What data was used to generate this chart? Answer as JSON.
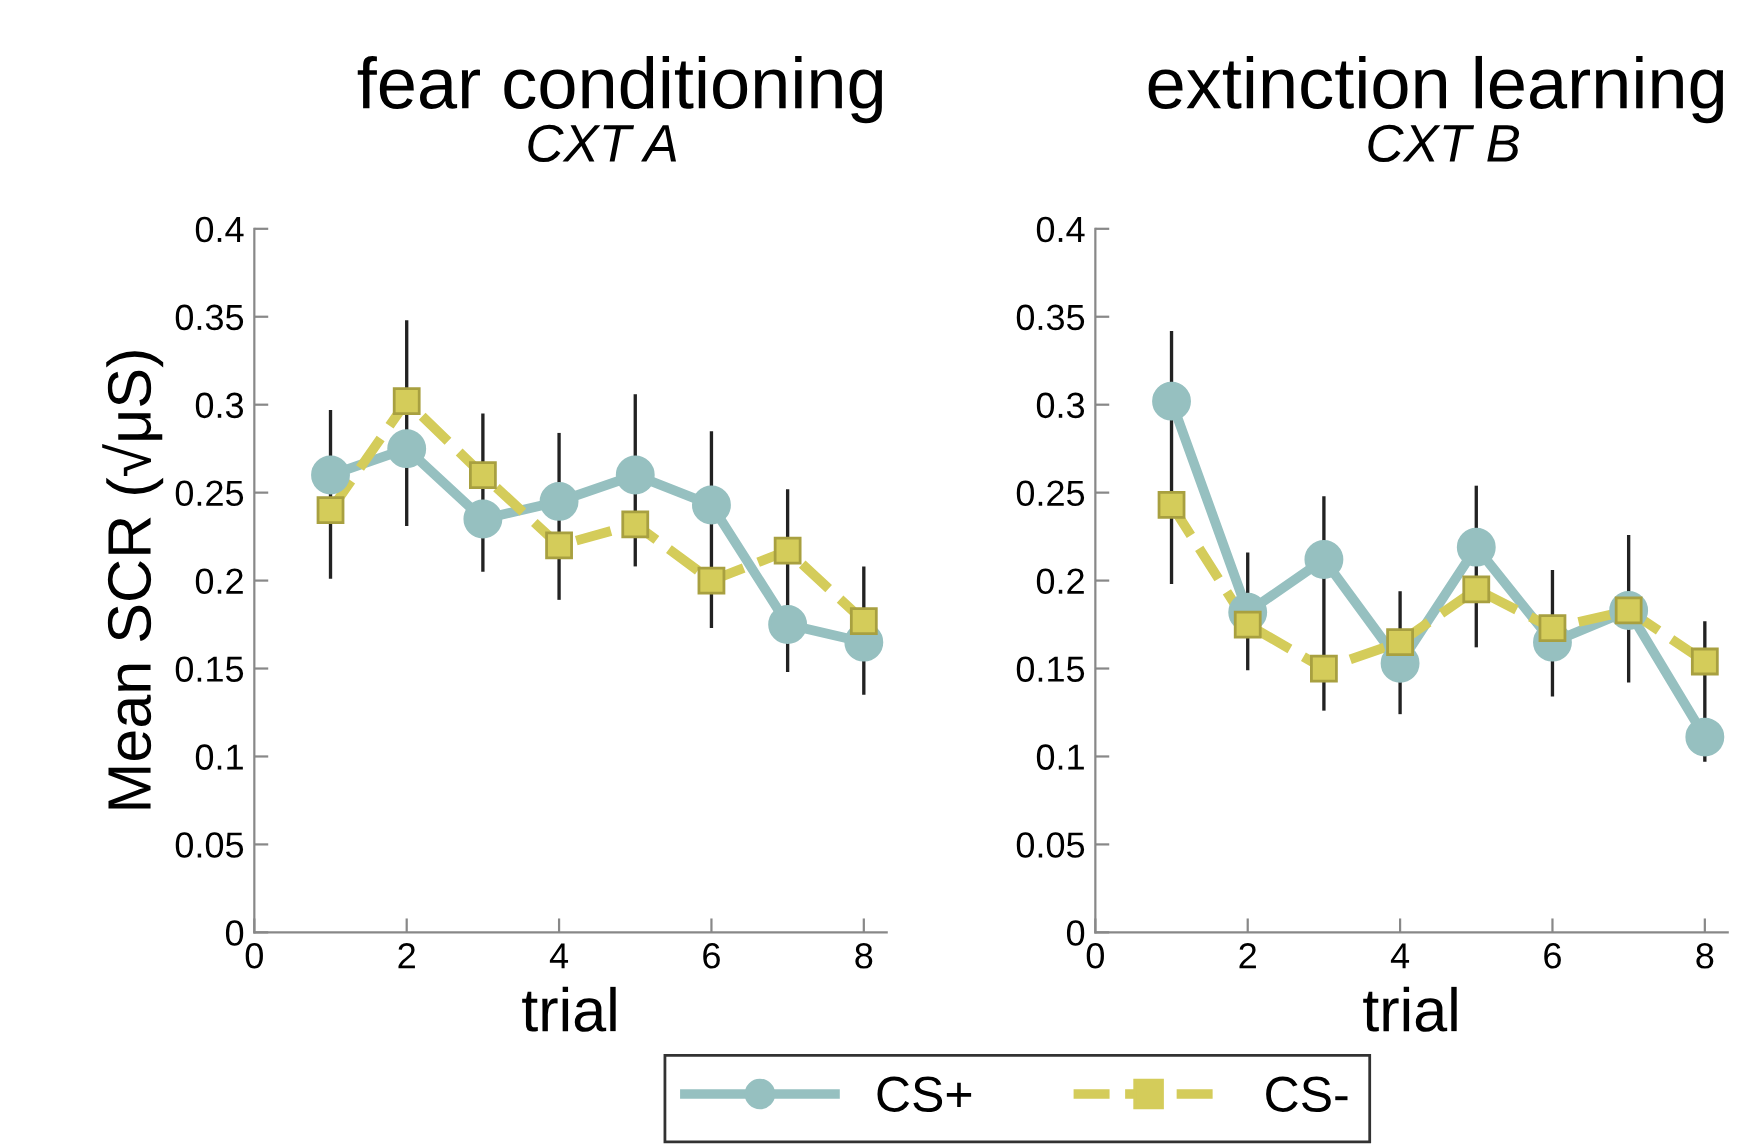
{
  "chart_data": [
    {
      "type": "line",
      "title": "fear conditioning",
      "subtitle": "CXT A",
      "xlabel": "trial",
      "ylabel": "Mean SCR (√μS)",
      "x": [
        1,
        2,
        3,
        4,
        5,
        6,
        7,
        8
      ],
      "xlim": [
        0,
        8.3
      ],
      "xticks": [
        0,
        2,
        4,
        6,
        8
      ],
      "ylim": [
        0,
        0.4
      ],
      "yticks": [
        0,
        0.05,
        0.1,
        0.15,
        0.2,
        0.25,
        0.3,
        0.35,
        0.4
      ],
      "grid": false,
      "legend": "bottom",
      "series": [
        {
          "name": "CS+",
          "color": "#96c0c0",
          "marker": "circle",
          "line_style": "solid",
          "values": [
            0.26,
            0.275,
            0.235,
            0.245,
            0.26,
            0.243,
            0.175,
            0.165
          ],
          "errors": [
            [
              0.202,
              0.296
            ],
            [
              0.232,
              0.347
            ],
            [
              0.206,
              0.294
            ],
            [
              0.19,
              0.283
            ],
            [
              0.209,
              0.305
            ],
            [
              0.174,
              0.284
            ],
            [
              0.149,
              0.251
            ],
            [
              0.136,
              0.207
            ]
          ]
        },
        {
          "name": "CS-",
          "color": "#d4cc5a",
          "marker": "square",
          "line_style": "dashed",
          "values": [
            0.24,
            0.302,
            0.26,
            0.22,
            0.232,
            0.2,
            0.217,
            0.177
          ]
        }
      ]
    },
    {
      "type": "line",
      "title": "extinction learning",
      "subtitle": "CXT B",
      "xlabel": "trial",
      "x": [
        1,
        2,
        3,
        4,
        5,
        6,
        7,
        8
      ],
      "xlim": [
        0,
        8.3
      ],
      "xticks": [
        0,
        2,
        4,
        6,
        8
      ],
      "ylim": [
        0,
        0.4
      ],
      "yticks": [
        0,
        0.05,
        0.1,
        0.15,
        0.2,
        0.25,
        0.3,
        0.35,
        0.4
      ],
      "grid": false,
      "series": [
        {
          "name": "CS+",
          "color": "#96c0c0",
          "marker": "circle",
          "line_style": "solid",
          "values": [
            0.302,
            0.182,
            0.212,
            0.153,
            0.219,
            0.165,
            0.183,
            0.111
          ],
          "errors": [
            [
              0.199,
              0.341
            ],
            [
              0.15,
              0.215
            ],
            [
              0.127,
              0.247
            ],
            [
              0.125,
              0.193
            ],
            [
              0.163,
              0.253
            ],
            [
              0.135,
              0.205
            ],
            [
              0.143,
              0.225
            ],
            [
              0.098,
              0.176
            ]
          ]
        },
        {
          "name": "CS-",
          "color": "#d4cc5a",
          "marker": "square",
          "line_style": "dashed",
          "values": [
            0.243,
            0.175,
            0.15,
            0.165,
            0.195,
            0.173,
            0.183,
            0.154
          ]
        }
      ]
    }
  ]
}
